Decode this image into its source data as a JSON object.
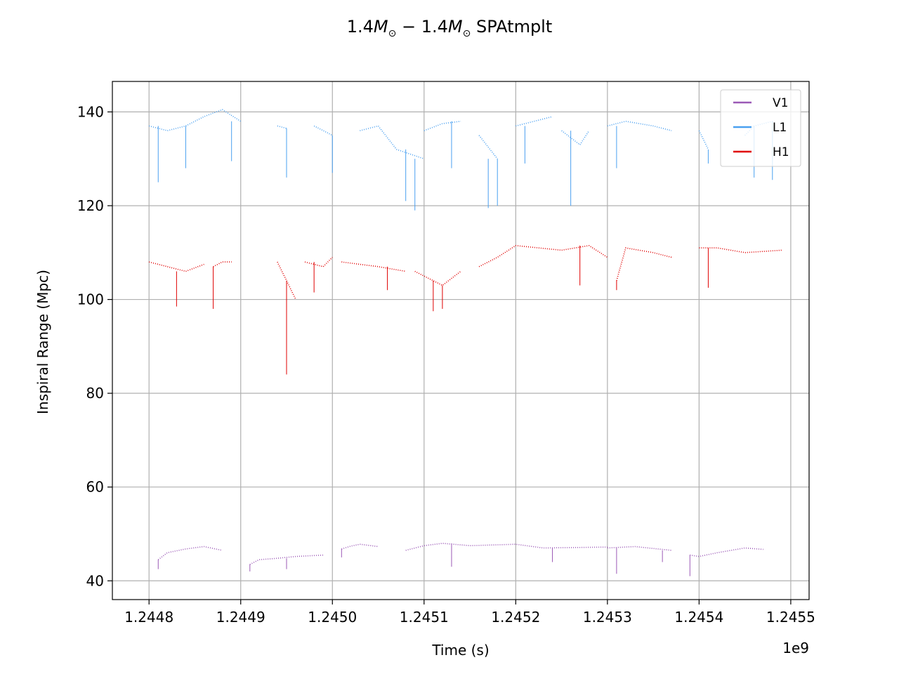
{
  "chart_data": {
    "type": "line",
    "title_prefix": "1.4",
    "title_symbol": "M",
    "title_sub": "⊙",
    "title_mid": " − 1.4",
    "title_suffix": " SPAtmplt",
    "xlabel": "Time (s)",
    "ylabel": "Inspiral Range (Mpc)",
    "x_offset_label": "1e9",
    "xlim": [
      1.24476,
      1.24552
    ],
    "ylim": [
      36,
      146.5
    ],
    "xticks": [
      1.2448,
      1.2449,
      1.245,
      1.2451,
      1.2452,
      1.2453,
      1.2454,
      1.2455
    ],
    "xtick_labels": [
      "1.2448",
      "1.2449",
      "1.2450",
      "1.2451",
      "1.2452",
      "1.2453",
      "1.2454",
      "1.2455"
    ],
    "yticks": [
      40,
      60,
      80,
      100,
      120,
      140
    ],
    "ytick_labels": [
      "40",
      "60",
      "80",
      "100",
      "120",
      "140"
    ],
    "grid": true,
    "legend_position": "top-right",
    "series": [
      {
        "name": "V1",
        "color": "#9b59b6",
        "segments": [
          {
            "x": [
              1.24481,
              1.24482,
              1.24484,
              1.24486,
              1.24488
            ],
            "y": [
              44.5,
              46,
              46.8,
              47.3,
              46.5
            ],
            "dip": [
              [
                1.24481,
                42.5
              ]
            ]
          },
          {
            "x": [
              1.24491,
              1.24492,
              1.24494,
              1.24496,
              1.24499
            ],
            "y": [
              43.5,
              44.5,
              44.8,
              45.2,
              45.5
            ],
            "dip": [
              [
                1.24491,
                42
              ],
              [
                1.24495,
                42.5
              ]
            ]
          },
          {
            "x": [
              1.24501,
              1.24502,
              1.24503,
              1.24505
            ],
            "y": [
              46.8,
              47.4,
              47.8,
              47.3
            ],
            "dip": [
              [
                1.24501,
                45
              ]
            ]
          },
          {
            "x": [
              1.24508,
              1.2451,
              1.24512,
              1.24515,
              1.2452,
              1.24523,
              1.2453
            ],
            "y": [
              46.5,
              47.5,
              48,
              47.5,
              47.8,
              47,
              47.2
            ],
            "dip": [
              [
                1.24513,
                43
              ],
              [
                1.24524,
                44
              ]
            ]
          },
          {
            "x": [
              1.2453,
              1.24533,
              1.24537
            ],
            "y": [
              47,
              47.3,
              46.5
            ],
            "dip": [
              [
                1.24531,
                41.5
              ],
              [
                1.24536,
                44
              ]
            ]
          },
          {
            "x": [
              1.24539,
              1.2454,
              1.24542,
              1.24545,
              1.24547
            ],
            "y": [
              45.5,
              45.2,
              46,
              47,
              46.7
            ],
            "dip": [
              [
                1.24539,
                41
              ]
            ]
          }
        ]
      },
      {
        "name": "L1",
        "color": "#4aa0f0",
        "segments": [
          {
            "x": [
              1.2448,
              1.24482,
              1.24484,
              1.24486,
              1.24488,
              1.2449
            ],
            "y": [
              137,
              136,
              137,
              139,
              140.5,
              138
            ],
            "dip": [
              [
                1.24481,
                125
              ],
              [
                1.24484,
                128
              ],
              [
                1.24489,
                129.5
              ]
            ]
          },
          {
            "x": [
              1.24494,
              1.24495
            ],
            "y": [
              137,
              136.5
            ],
            "dip": [
              [
                1.24495,
                126
              ]
            ]
          },
          {
            "x": [
              1.24498,
              1.245
            ],
            "y": [
              137,
              135
            ],
            "dip": [
              [
                1.245,
                127
              ]
            ]
          },
          {
            "x": [
              1.24503,
              1.24505,
              1.24507,
              1.2451
            ],
            "y": [
              136,
              137,
              132,
              130
            ],
            "dip": [
              [
                1.24509,
                119
              ],
              [
                1.24508,
                121
              ]
            ]
          },
          {
            "x": [
              1.2451,
              1.24512,
              1.24514
            ],
            "y": [
              136,
              137.5,
              138
            ],
            "dip": [
              [
                1.24513,
                128
              ]
            ]
          },
          {
            "x": [
              1.24516,
              1.24518
            ],
            "y": [
              135,
              130
            ],
            "dip": [
              [
                1.24517,
                119.5
              ],
              [
                1.24518,
                120
              ]
            ]
          },
          {
            "x": [
              1.2452,
              1.24522,
              1.24524
            ],
            "y": [
              137,
              138,
              139
            ],
            "dip": [
              [
                1.24521,
                129
              ]
            ]
          },
          {
            "x": [
              1.24525,
              1.24527,
              1.24528
            ],
            "y": [
              136,
              133,
              136
            ],
            "dip": [
              [
                1.24526,
                120
              ]
            ]
          },
          {
            "x": [
              1.2453,
              1.24532,
              1.24535,
              1.24537
            ],
            "y": [
              137,
              138,
              137,
              136
            ],
            "dip": [
              [
                1.24531,
                128
              ]
            ]
          },
          {
            "x": [
              1.2454,
              1.24541
            ],
            "y": [
              136,
              132
            ],
            "dip": [
              [
                1.24541,
                129
              ]
            ]
          },
          {
            "x": [
              1.24545,
              1.24546,
              1.24548
            ],
            "y": [
              135,
              137,
              138
            ],
            "dip": [
              [
                1.24546,
                126
              ],
              [
                1.24548,
                125.5
              ]
            ]
          }
        ]
      },
      {
        "name": "H1",
        "color": "#e00000",
        "segments": [
          {
            "x": [
              1.2448,
              1.24482,
              1.24484,
              1.24486
            ],
            "y": [
              108,
              107,
              106,
              107.5
            ],
            "dip": [
              [
                1.24483,
                98.5
              ]
            ]
          },
          {
            "x": [
              1.24487,
              1.24488,
              1.24489
            ],
            "y": [
              107,
              108,
              108
            ],
            "dip": [
              [
                1.24487,
                98
              ]
            ]
          },
          {
            "x": [
              1.24494,
              1.24495,
              1.24496
            ],
            "y": [
              108,
              104,
              100
            ],
            "dip": [
              [
                1.24495,
                93.5
              ],
              [
                1.24495,
                84
              ]
            ]
          },
          {
            "x": [
              1.24497,
              1.24499,
              1.245
            ],
            "y": [
              108,
              107,
              109
            ],
            "dip": [
              [
                1.24498,
                101.5
              ]
            ]
          },
          {
            "x": [
              1.24501,
              1.24505,
              1.24508
            ],
            "y": [
              108,
              107,
              106
            ],
            "dip": [
              [
                1.24506,
                102
              ]
            ]
          },
          {
            "x": [
              1.24509,
              1.24511,
              1.24512,
              1.24514
            ],
            "y": [
              106,
              104,
              103,
              106
            ],
            "dip": [
              [
                1.24511,
                97.5
              ],
              [
                1.24512,
                98
              ]
            ]
          },
          {
            "x": [
              1.24516,
              1.24518,
              1.2452,
              1.24525,
              1.24528,
              1.2453
            ],
            "y": [
              107,
              109,
              111.5,
              110.5,
              111.5,
              109
            ],
            "dip": [
              [
                1.24527,
                103
              ]
            ]
          },
          {
            "x": [
              1.24531,
              1.24532,
              1.24535,
              1.24537
            ],
            "y": [
              104,
              111,
              110,
              109
            ],
            "dip": [
              [
                1.24531,
                102
              ]
            ]
          },
          {
            "x": [
              1.2454,
              1.24542,
              1.24545,
              1.24549
            ],
            "y": [
              111,
              111,
              110,
              110.5
            ],
            "dip": [
              [
                1.24541,
                102.5
              ]
            ]
          }
        ]
      }
    ]
  }
}
